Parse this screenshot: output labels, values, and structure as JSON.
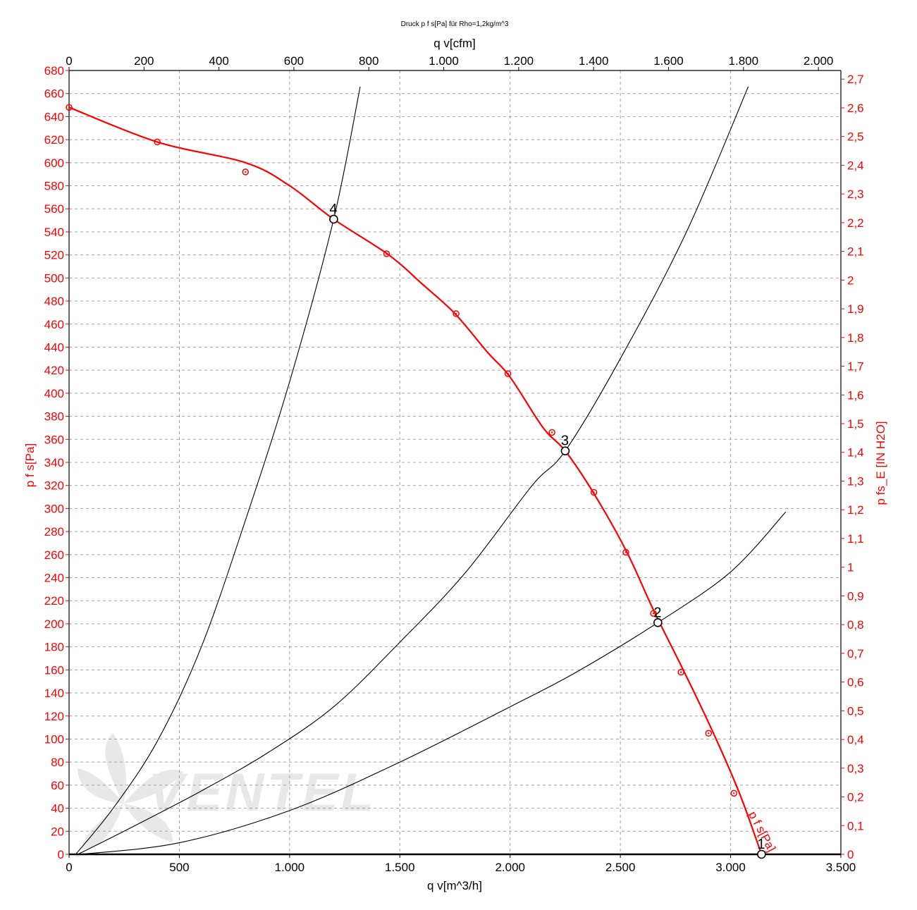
{
  "chart_data": {
    "type": "line",
    "title": "Druck p f s[Pa] für Rho=1,2kg/m^3",
    "xlabel": "q v[m^3/h]",
    "x2label": "q v[cfm]",
    "ylabel": "p f s[Pa]",
    "y2label": "p fs_E [IN H2O]",
    "xlim": [
      0,
      3500
    ],
    "ylim": [
      0,
      680
    ],
    "x2lim": [
      0,
      2060
    ],
    "y2lim": [
      0,
      2.73
    ],
    "x_ticks": [
      "0",
      "500",
      "1.000",
      "1.500",
      "2.000",
      "2.500",
      "3.000",
      "3.500"
    ],
    "y_ticks": [
      "0",
      "20",
      "40",
      "60",
      "80",
      "100",
      "120",
      "140",
      "160",
      "180",
      "200",
      "220",
      "240",
      "260",
      "280",
      "300",
      "320",
      "340",
      "360",
      "380",
      "400",
      "420",
      "440",
      "460",
      "480",
      "500",
      "520",
      "540",
      "560",
      "580",
      "600",
      "620",
      "640",
      "660",
      "680"
    ],
    "x2_ticks": [
      "0",
      "200",
      "400",
      "600",
      "800",
      "1.000",
      "1.200",
      "1.400",
      "1.600",
      "1.800",
      "2.000"
    ],
    "y2_ticks": [
      "0",
      "0,1",
      "0,2",
      "0,3",
      "0,4",
      "0,5",
      "0,6",
      "0,7",
      "0,8",
      "0,9",
      "1",
      "1,1",
      "1,2",
      "1,3",
      "1,4",
      "1,5",
      "1,6",
      "1,7",
      "1,8",
      "1,9",
      "2",
      "2,1",
      "2,2",
      "2,3",
      "2,4",
      "2,5",
      "2,6",
      "2,7"
    ],
    "grid": true,
    "fan_curve": {
      "name": "p f s[Pa]",
      "color": "#ff0000",
      "x": [
        0,
        400,
        800,
        1000,
        1200,
        1450,
        1600,
        1750,
        1900,
        2000,
        2150,
        2250,
        2380,
        2530,
        2650,
        2790,
        2920,
        3040,
        3140
      ],
      "y": [
        648,
        618,
        600,
        580,
        551,
        520,
        495,
        469,
        435,
        414,
        370,
        350,
        313,
        262,
        212,
        158,
        106,
        53,
        0
      ],
      "markers_x": [
        0,
        400,
        800,
        1200,
        1440,
        1755,
        1990,
        2190,
        2380,
        2525,
        2650,
        2775,
        2900,
        3015
      ],
      "markers_y": [
        648,
        618,
        592,
        551,
        521,
        469,
        417,
        366,
        314,
        262,
        209,
        158,
        105,
        53
      ]
    },
    "system_curves": [
      {
        "x": [
          30,
          200,
          400,
          600,
          800,
          1000,
          1200,
          1320
        ],
        "y": [
          0,
          40,
          98,
          180,
          290,
          410,
          551,
          666
        ]
      },
      {
        "x": [
          40,
          300,
          600,
          900,
          1200,
          1500,
          1800,
          2100,
          2250,
          2500,
          2800,
          3080
        ],
        "y": [
          0,
          25,
          55,
          88,
          128,
          184,
          245,
          320,
          350,
          430,
          540,
          666
        ]
      },
      {
        "x": [
          50,
          500,
          1000,
          1500,
          2000,
          2300,
          2670,
          3000,
          3250
        ],
        "y": [
          0,
          10,
          38,
          80,
          128,
          158,
          201,
          245,
          297
        ]
      }
    ],
    "operating_points": [
      {
        "label": "1",
        "x": 3140,
        "y": 0
      },
      {
        "label": "2",
        "x": 2670,
        "y": 201
      },
      {
        "label": "3",
        "x": 2250,
        "y": 350
      },
      {
        "label": "4",
        "x": 1200,
        "y": 551
      }
    ],
    "watermark": "VENTEL"
  }
}
